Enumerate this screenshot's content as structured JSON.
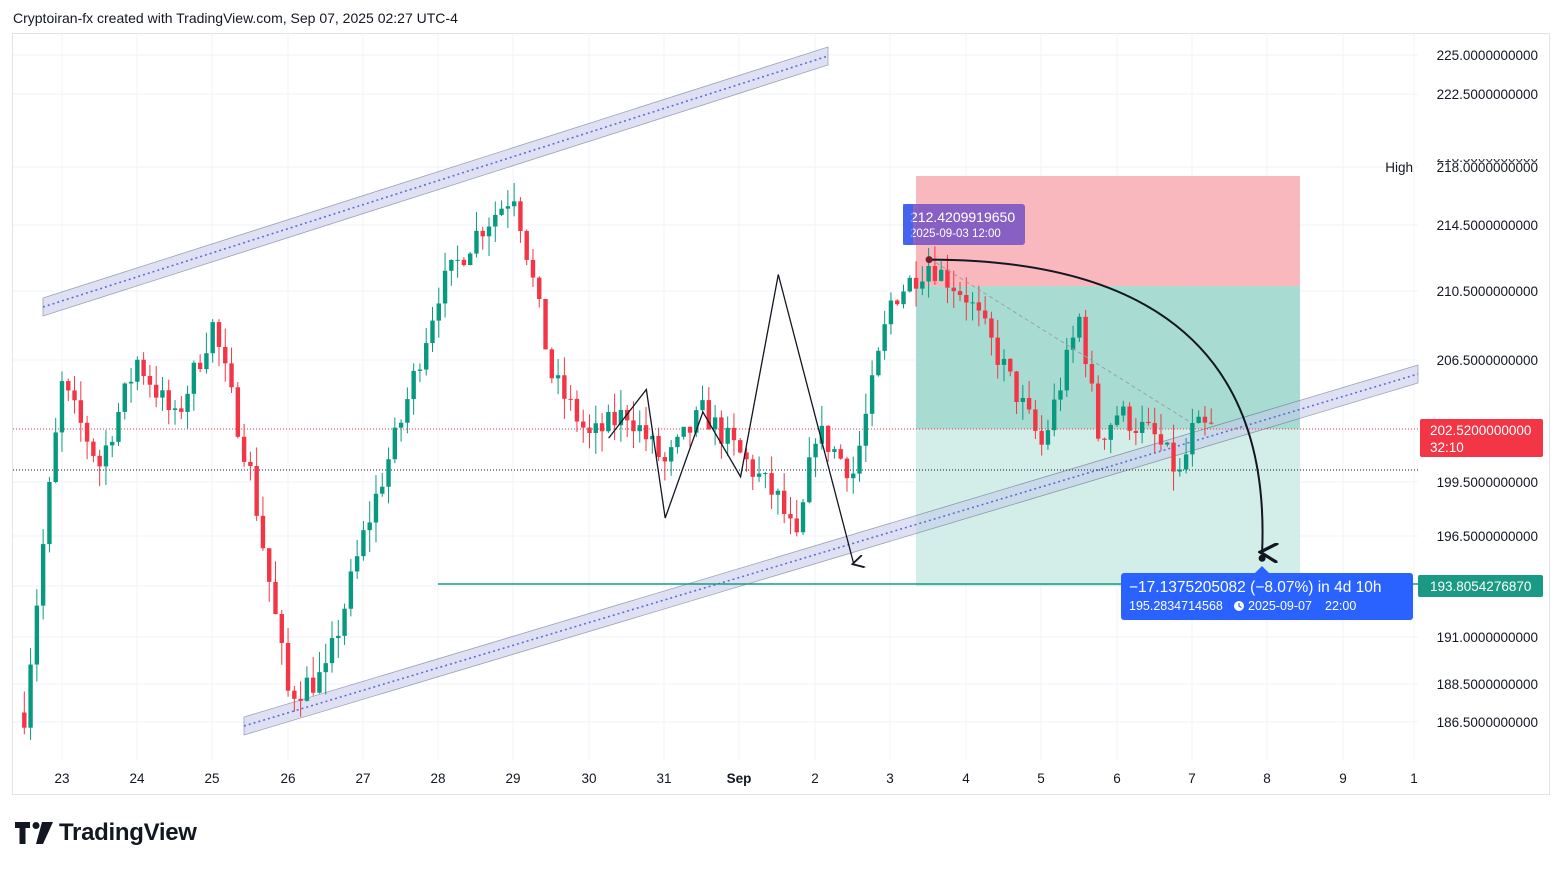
{
  "header": {
    "text": "Cryptoiran-fx created with TradingView.com, Sep 07, 2025 02:27 UTC-4"
  },
  "logo": {
    "text": "TradingView",
    "icon": "tradingview-logo-icon"
  },
  "colors": {
    "up": "#089981",
    "down": "#f23645",
    "channel": "#5b6ee1",
    "channel_fill": "#c5cae9",
    "stop_zone": "#f9b4b9",
    "target_zone": "#a8dcd2",
    "target_zone_light": "#d3eee8",
    "measure": "#2962ff",
    "marker": "#7e57c2"
  },
  "chart_data": {
    "type": "candlestick",
    "x_ticks": [
      "23",
      "24",
      "25",
      "26",
      "27",
      "28",
      "29",
      "30",
      "31",
      "Sep",
      "2",
      "3",
      "4",
      "5",
      "6",
      "7",
      "8",
      "9",
      "1"
    ],
    "y_ticks": [
      "225.0000000000",
      "222.5000000000",
      "218.0000000000",
      "214.5000000000",
      "210.5000000000",
      "206.5000000000",
      "199.5000000000",
      "196.5000000000",
      "191.0000000000",
      "188.5000000000",
      "186.5000000000"
    ],
    "y_range": [
      185.0,
      226.0
    ],
    "y_scale": "piecewise",
    "grid": true,
    "last_price": {
      "value": "202.5200000000",
      "countdown": "32:10"
    },
    "target_price": {
      "value": "193.8054276870"
    },
    "high_label": "High",
    "partial_tick": "218.5000000000",
    "high_marker": {
      "price": "212.4209919650",
      "date": "2025-09-03 12:00"
    },
    "measurement": {
      "change": "−17.1375205082 (−8.07%) in 4d 10h",
      "end_price": "195.2834714568",
      "end_date": "2025-09-07",
      "end_time": "22:00",
      "clock_icon": "clock-icon"
    },
    "series": [
      {
        "type": "candles",
        "interval": "2h",
        "close_path": [
          {
            "date": "2025-08-22 12:00",
            "close": 187.0
          },
          {
            "date": "2025-08-23 00:00",
            "close": 205.0
          },
          {
            "date": "2025-08-23 12:00",
            "close": 200.5
          },
          {
            "date": "2025-08-24 00:00",
            "close": 206.5
          },
          {
            "date": "2025-08-24 12:00",
            "close": 203.0
          },
          {
            "date": "2025-08-25 00:00",
            "close": 208.5
          },
          {
            "date": "2025-08-25 12:00",
            "close": 200.0
          },
          {
            "date": "2025-08-26 00:00",
            "close": 188.0
          },
          {
            "date": "2025-08-26 12:00",
            "close": 189.0
          },
          {
            "date": "2025-08-27 00:00",
            "close": 196.5
          },
          {
            "date": "2025-08-27 12:00",
            "close": 203.0
          },
          {
            "date": "2025-08-28 00:00",
            "close": 210.5
          },
          {
            "date": "2025-08-28 12:00",
            "close": 214.0
          },
          {
            "date": "2025-08-29 00:00",
            "close": 216.5
          },
          {
            "date": "2025-08-29 12:00",
            "close": 205.5
          },
          {
            "date": "2025-08-30 00:00",
            "close": 202.0
          },
          {
            "date": "2025-08-30 12:00",
            "close": 203.5
          },
          {
            "date": "2025-08-31 00:00",
            "close": 200.5
          },
          {
            "date": "2025-08-31 12:00",
            "close": 203.5
          },
          {
            "date": "2025-09-01 00:00",
            "close": 201.0
          },
          {
            "date": "2025-09-01 12:00",
            "close": 198.5
          },
          {
            "date": "2025-09-01 18:00",
            "close": 196.0
          },
          {
            "date": "2025-09-02 00:00",
            "close": 202.5
          },
          {
            "date": "2025-09-02 12:00",
            "close": 200.0
          },
          {
            "date": "2025-09-03 00:00",
            "close": 210.0
          },
          {
            "date": "2025-09-03 12:00",
            "close": 212.2
          },
          {
            "date": "2025-09-04 00:00",
            "close": 210.2
          },
          {
            "date": "2025-09-04 12:00",
            "close": 206.0
          },
          {
            "date": "2025-09-05 00:00",
            "close": 201.5
          },
          {
            "date": "2025-09-05 12:00",
            "close": 209.0
          },
          {
            "date": "2025-09-05 18:00",
            "close": 202.0
          },
          {
            "date": "2025-09-06 00:00",
            "close": 203.5
          },
          {
            "date": "2025-09-06 12:00",
            "close": 202.0
          },
          {
            "date": "2025-09-06 20:00",
            "close": 199.8
          },
          {
            "date": "2025-09-07 00:00",
            "close": 202.5
          },
          {
            "date": "2025-09-07 06:00",
            "close": 202.52
          }
        ]
      },
      {
        "type": "ascending channel upper",
        "points": [
          [
            "2025-08-22 12:00",
            210.0
          ],
          [
            "2025-09-01 12:00",
            225.2
          ]
        ]
      },
      {
        "type": "ascending channel lower",
        "points": [
          [
            "2025-08-25 12:00",
            186.3
          ],
          [
            "2025-09-09 12:00",
            205.8
          ]
        ]
      },
      {
        "type": "zigzag projection",
        "points": [
          [
            "2025-08-30 06:00",
            202.0
          ],
          [
            "2025-08-30 18:00",
            204.8
          ],
          [
            "2025-08-31 00:00",
            197.5
          ],
          [
            "2025-08-31 12:00",
            203.5
          ],
          [
            "2025-09-01 00:00",
            199.8
          ],
          [
            "2025-09-01 12:00",
            211.5
          ],
          [
            "2025-09-02 12:00",
            195.0
          ]
        ]
      },
      {
        "type": "support level",
        "value": 193.8
      },
      {
        "type": "short position",
        "entry": 210.8,
        "stop": 217.2,
        "target": 193.8
      },
      {
        "type": "projection arc",
        "points": [
          [
            "2025-09-03 12:00",
            212.4
          ],
          [
            "2025-09-07 22:00",
            195.3
          ]
        ]
      }
    ]
  }
}
